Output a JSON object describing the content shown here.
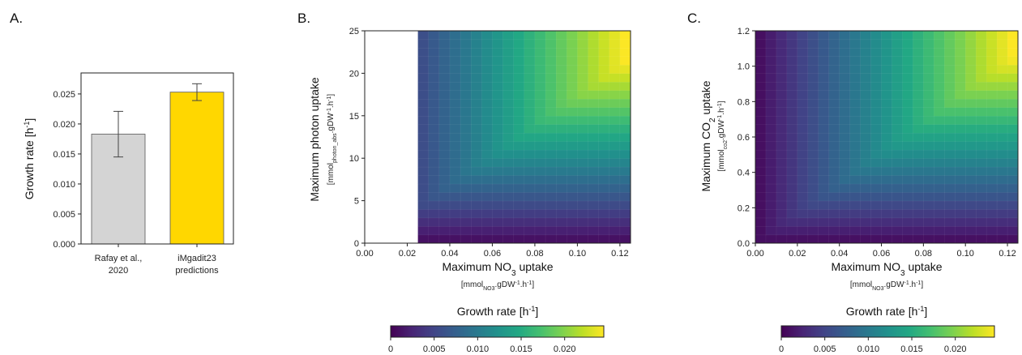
{
  "panels": {
    "a": {
      "letter": "A."
    },
    "b": {
      "letter": "B."
    },
    "c": {
      "letter": "C."
    }
  },
  "colorbars": [
    {
      "label_main": "Growth rate [h",
      "label_sup": "-1",
      "label_end": "]",
      "ticks": [
        "0",
        "0.005",
        "0.010",
        "0.015",
        "0.020"
      ],
      "tick_values": [
        0,
        0.005,
        0.01,
        0.015,
        0.02
      ],
      "range": [
        0,
        0.0245
      ]
    },
    {
      "label_main": "Growth rate [h",
      "label_sup": "-1",
      "label_end": "]",
      "ticks": [
        "0",
        "0.005",
        "0.010",
        "0.015",
        "0.020"
      ],
      "tick_values": [
        0,
        0.005,
        0.01,
        0.015,
        0.02
      ],
      "range": [
        0,
        0.0245
      ]
    }
  ],
  "chart_data": [
    {
      "type": "bar",
      "panel": "A.",
      "categories": [
        {
          "line1": "Rafay et al.,",
          "line2": "2020"
        },
        {
          "line1": "iMgadit23",
          "line2": "predictions"
        }
      ],
      "values": [
        0.0183,
        0.0253
      ],
      "errors": [
        0.0038,
        0.0014
      ],
      "colors": [
        "#d4d4d4",
        "#ffd700"
      ],
      "ylabel_main": "Growth rate [h",
      "ylabel_sup": "-1",
      "ylabel_end": "]",
      "ylim": [
        0,
        0.0285
      ],
      "yticks": [
        "0.000",
        "0.005",
        "0.010",
        "0.015",
        "0.020",
        "0.025"
      ],
      "ytick_values": [
        0,
        0.005,
        0.01,
        0.015,
        0.02,
        0.025
      ]
    },
    {
      "type": "heatmap",
      "panel": "B.",
      "xlim": [
        0,
        0.125
      ],
      "ylim": [
        0,
        25
      ],
      "xticks": [
        "0.00",
        "0.02",
        "0.04",
        "0.06",
        "0.08",
        "0.10",
        "0.12"
      ],
      "xtick_values": [
        0,
        0.02,
        0.04,
        0.06,
        0.08,
        0.1,
        0.12
      ],
      "yticks": [
        "0",
        "5",
        "10",
        "15",
        "20",
        "25"
      ],
      "ytick_values": [
        0,
        5,
        10,
        15,
        20,
        25
      ],
      "xlabel_main": "Maximum NO",
      "xlabel_sub": "3",
      "xlabel_end": " uptake",
      "xunit_a": "[mmol",
      "xunit_sub": "NO3",
      "xunit_b": ".gDW",
      "xunit_sup": "-1",
      "xunit_c": ".h",
      "xunit_sup2": "-1",
      "xunit_d": "]",
      "ylabel_main": "Maximum photon uptake",
      "yunit_a": "[mmol",
      "yunit_sub": "photon_abs",
      "yunit_b": ".gDW",
      "yunit_sup": "-1",
      "yunit_c": ".h",
      "yunit_sup2": "-1",
      "yunit_d": "]",
      "nx": 25,
      "ny": 25,
      "nan_below_x": 0.025,
      "value_range": [
        0,
        0.0245
      ]
    },
    {
      "type": "heatmap",
      "panel": "C.",
      "xlim": [
        0,
        0.125
      ],
      "ylim": [
        0,
        1.2
      ],
      "xticks": [
        "0.00",
        "0.02",
        "0.04",
        "0.06",
        "0.08",
        "0.10",
        "0.12"
      ],
      "xtick_values": [
        0,
        0.02,
        0.04,
        0.06,
        0.08,
        0.1,
        0.12
      ],
      "yticks": [
        "0.0",
        "0.2",
        "0.4",
        "0.6",
        "0.8",
        "1.0",
        "1.2"
      ],
      "ytick_values": [
        0,
        0.2,
        0.4,
        0.6,
        0.8,
        1.0,
        1.2
      ],
      "xlabel_main": "Maximum NO",
      "xlabel_sub": "3",
      "xlabel_end": " uptake",
      "xunit_a": "[mmol",
      "xunit_sub": "NO3",
      "xunit_b": ".gDW",
      "xunit_sup": "-1",
      "xunit_c": ".h",
      "xunit_sup2": "-1",
      "xunit_d": "]",
      "ylabel_main": "Maximum CO",
      "ylabel_sub": "2",
      "ylabel_end": " uptake",
      "yunit_a": "[mmol",
      "yunit_sub": "co2",
      "yunit_b": ".gDW",
      "yunit_sup": "-1",
      "yunit_c": ".h",
      "yunit_sup2": "-1",
      "yunit_d": "]",
      "nx": 25,
      "ny": 25,
      "value_range": [
        0,
        0.0245
      ]
    }
  ]
}
